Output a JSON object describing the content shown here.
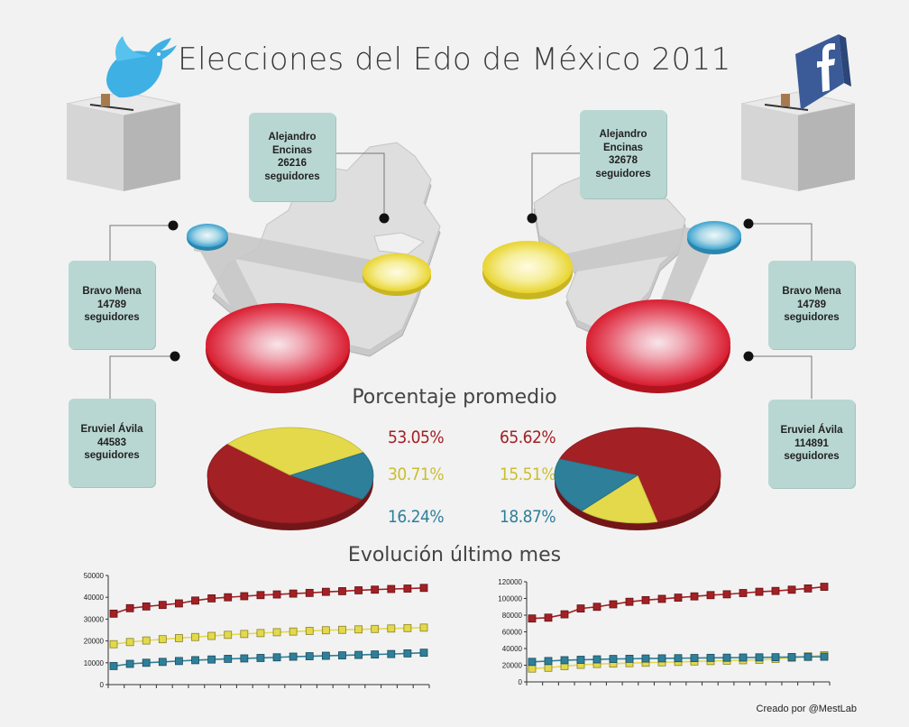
{
  "title": "Elecciones del Edo de México 2011",
  "subtitle_pct": "Porcentaje promedio",
  "subtitle_evol": "Evolución último mes",
  "credit": "Creado por @MestLab",
  "colors": {
    "red": "#a32024",
    "yellow": "#e3d94a",
    "blue": "#2e7f9a",
    "card": "#b8d7d3"
  },
  "twitter": {
    "icon": "twitter-bird-icon",
    "candidates": [
      {
        "name": "Alejandro Encinas",
        "count": "26216",
        "unit": "seguidores"
      },
      {
        "name": "Bravo Mena",
        "count": "14789",
        "unit": "seguidores"
      },
      {
        "name": "Eruviel Ávila",
        "count": "44583",
        "unit": "seguidores"
      }
    ]
  },
  "facebook": {
    "icon": "facebook-logo-icon",
    "candidates": [
      {
        "name": "Alejandro Encinas",
        "count": "32678",
        "unit": "seguidores"
      },
      {
        "name": "Bravo Mena",
        "count": "14789",
        "unit": "seguidores"
      },
      {
        "name": "Eruviel Ávila",
        "count": "114891",
        "unit": "seguidores"
      }
    ]
  },
  "chart_data": [
    {
      "type": "pie",
      "labels": [
        "53.05%",
        "30.71%",
        "16.24%"
      ],
      "values": [
        53.05,
        30.71,
        16.24
      ],
      "colors": [
        "#a32024",
        "#e3d94a",
        "#2e7f9a"
      ]
    },
    {
      "type": "pie",
      "labels": [
        "65.62%",
        "15.51%",
        "18.87%"
      ],
      "values": [
        65.62,
        15.51,
        18.87
      ],
      "colors": [
        "#a32024",
        "#e3d94a",
        "#2e7f9a"
      ]
    },
    {
      "type": "line",
      "ylim": [
        0,
        50000
      ],
      "yticks": [
        "0",
        "10000",
        "20000",
        "30000",
        "40000",
        "50000"
      ],
      "x": [
        1,
        2,
        3,
        4,
        5,
        6,
        7,
        8,
        9,
        10,
        11,
        12,
        13,
        14,
        15,
        16,
        17,
        18,
        19,
        20
      ],
      "series": [
        {
          "color": "#a32024",
          "values": [
            32500,
            35000,
            35800,
            36500,
            37200,
            38500,
            39500,
            40000,
            40500,
            41000,
            41300,
            41700,
            42000,
            42500,
            42800,
            43200,
            43500,
            43800,
            44000,
            44300
          ]
        },
        {
          "color": "#e3d94a",
          "values": [
            18500,
            19500,
            20200,
            20800,
            21300,
            21800,
            22300,
            22800,
            23200,
            23600,
            24000,
            24300,
            24600,
            24900,
            25100,
            25300,
            25500,
            25700,
            25900,
            26100
          ]
        },
        {
          "color": "#2e7f9a",
          "values": [
            8500,
            9500,
            10000,
            10400,
            10800,
            11200,
            11500,
            11800,
            12000,
            12200,
            12500,
            12800,
            13000,
            13200,
            13400,
            13600,
            13800,
            14000,
            14300,
            14600
          ]
        }
      ]
    },
    {
      "type": "line",
      "ylim": [
        0,
        120000
      ],
      "yticks": [
        "0",
        "20000",
        "40000",
        "60000",
        "80000",
        "100000",
        "120000"
      ],
      "x": [
        1,
        2,
        3,
        4,
        5,
        6,
        7,
        8,
        9,
        10,
        11,
        12,
        13,
        14,
        15,
        16,
        17,
        18,
        19
      ],
      "series": [
        {
          "color": "#a32024",
          "values": [
            76000,
            77000,
            81000,
            88000,
            90000,
            93000,
            96000,
            98000,
            99500,
            101000,
            102500,
            104000,
            105000,
            106500,
            108000,
            109000,
            110500,
            112000,
            114000
          ]
        },
        {
          "color": "#e3d94a",
          "values": [
            16000,
            17000,
            19000,
            20500,
            21500,
            22000,
            22500,
            23000,
            23500,
            24000,
            24500,
            25000,
            25500,
            26000,
            26500,
            27500,
            29000,
            30500,
            32000
          ]
        },
        {
          "color": "#2e7f9a",
          "values": [
            24000,
            25000,
            26000,
            26500,
            27000,
            27500,
            27700,
            28000,
            28200,
            28400,
            28600,
            28800,
            29000,
            29200,
            29400,
            29600,
            29800,
            30000,
            30200
          ]
        }
      ]
    }
  ]
}
